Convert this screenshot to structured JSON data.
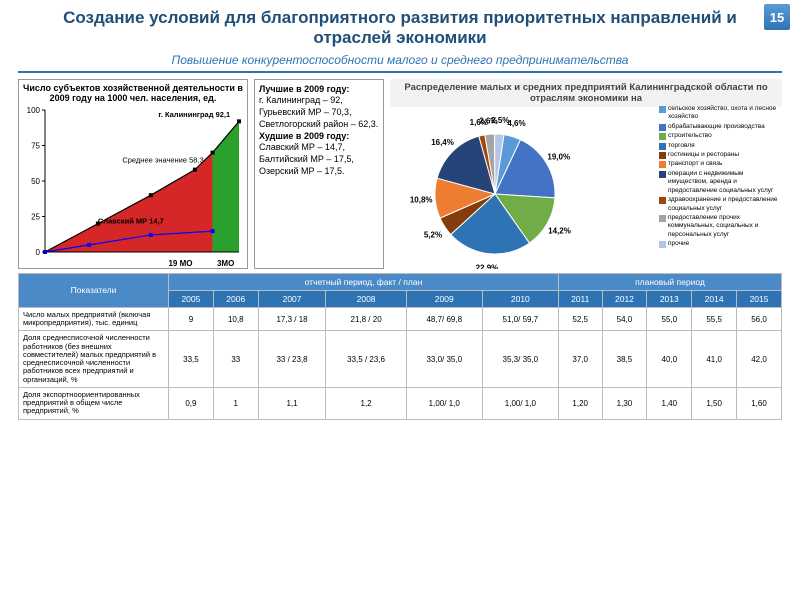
{
  "page_number": "15",
  "title": "Создание условий для благоприятного развития приоритетных направлений и отраслей экономики",
  "subtitle": "Повышение конкурентоспособности малого и среднего предпринимательства",
  "line_chart": {
    "type": "line",
    "title": "Число субъектов хозяйственной деятельности в 2009 году на 1000 чел. населения, ед.",
    "y_ticks": [
      0,
      25,
      50,
      75,
      100
    ],
    "ylim": [
      0,
      100
    ],
    "xlim": [
      0,
      22
    ],
    "fill_red": "#d62728",
    "fill_green": "#2ca02c",
    "best_series_color": "#000000",
    "worst_series_color": "#0000ff",
    "split_x": 19,
    "points_best": [
      [
        0,
        0
      ],
      [
        6,
        20
      ],
      [
        12,
        40
      ],
      [
        17,
        58
      ],
      [
        19,
        70
      ],
      [
        22,
        92
      ]
    ],
    "points_worst": [
      [
        0,
        0
      ],
      [
        5,
        5
      ],
      [
        12,
        12
      ],
      [
        19,
        14.7
      ]
    ],
    "annotations": {
      "kaliningrad": "г. Калининград 92,1",
      "mean": "Среднее значение 58,3",
      "slavsky": "Славский МР 14,7",
      "x19": "19 МО",
      "x3": "3МО"
    }
  },
  "textbox": {
    "best_title": "Лучшие в 2009 году:",
    "best_lines": [
      "г. Калининград – 92,",
      "Гурьевский МР – 70,3,",
      "Светлогорский район – 62,3."
    ],
    "worst_title": "Худшие в 2009 году:",
    "worst_lines": [
      "Славский МР – 14,7,",
      "Балтийский МР – 17,5,",
      "Озерский МР – 17,5."
    ]
  },
  "pie_chart": {
    "type": "pie",
    "title": "Распределение малых и средних предприятий Калининградской области по отраслям экономики на",
    "slices": [
      {
        "value": 4.6,
        "label": "4,6%",
        "color": "#5b9bd5",
        "legend": "сельское хозяйство, охота и лесное хозяйство"
      },
      {
        "value": 19.0,
        "label": "19,0%",
        "color": "#4472c4",
        "legend": "обрабатывающие производства"
      },
      {
        "value": 14.2,
        "label": "14,2%",
        "color": "#70ad47",
        "legend": "строительство"
      },
      {
        "value": 22.9,
        "label": "22,9%",
        "color": "#2e74b5",
        "legend": "торговля"
      },
      {
        "value": 5.2,
        "label": "5,2%",
        "color": "#843c0b",
        "legend": "гостиницы и рестораны"
      },
      {
        "value": 10.8,
        "label": "10,8%",
        "color": "#ed7d31",
        "legend": "транспорт и связь"
      },
      {
        "value": 16.4,
        "label": "16,4%",
        "color": "#264478",
        "legend": "операции с недвижимым имуществом, аренда и предоставление социальных услуг"
      },
      {
        "value": 1.6,
        "label": "1,6%",
        "color": "#9e480e",
        "legend": "здравоохранение и предоставление социальных услуг"
      },
      {
        "value": 2.6,
        "label": "2,6%",
        "color": "#a5a5a5",
        "legend": "предоставление прочих коммунальных, социальных и персональных услуг"
      },
      {
        "value": 2.5,
        "label": "2,5%",
        "color": "#b4c6e7",
        "legend": "прочие"
      }
    ]
  },
  "table": {
    "header_indicator": "Показатели",
    "header_fact": "отчетный период, факт / план",
    "header_plan": "плановый период",
    "years": [
      "2005",
      "2006",
      "2007",
      "2008",
      "2009",
      "2010",
      "2011",
      "2012",
      "2013",
      "2014",
      "2015"
    ],
    "rows": [
      {
        "label": "Число малых предприятий (включая микропредприятия), тыс. единиц",
        "cells": [
          "9",
          "10,8",
          "17,3 / 18",
          "21,8 / 20",
          "48,7/ 69,8",
          "51,0/ 59,7",
          "52,5",
          "54,0",
          "55,0",
          "55,5",
          "56,0"
        ]
      },
      {
        "label": "Доля среднесписочной численности работников (без внешних совместителей) малых предприятий в среднесписочной численности работников всех предприятий и организаций, %",
        "cells": [
          "33,5",
          "33",
          "33 / 23,8",
          "33,5 / 23,6",
          "33,0/ 35,0",
          "35,3/ 35,0",
          "37,0",
          "38,5",
          "40,0",
          "41,0",
          "42,0"
        ]
      },
      {
        "label": "Доля экспортноориентированных предприятий в общем числе предприятий, %",
        "cells": [
          "0,9",
          "1",
          "1,1",
          "1,2",
          "1,00/ 1,0",
          "1,00/ 1,0",
          "1,20",
          "1,30",
          "1,40",
          "1,50",
          "1,60"
        ]
      }
    ]
  }
}
